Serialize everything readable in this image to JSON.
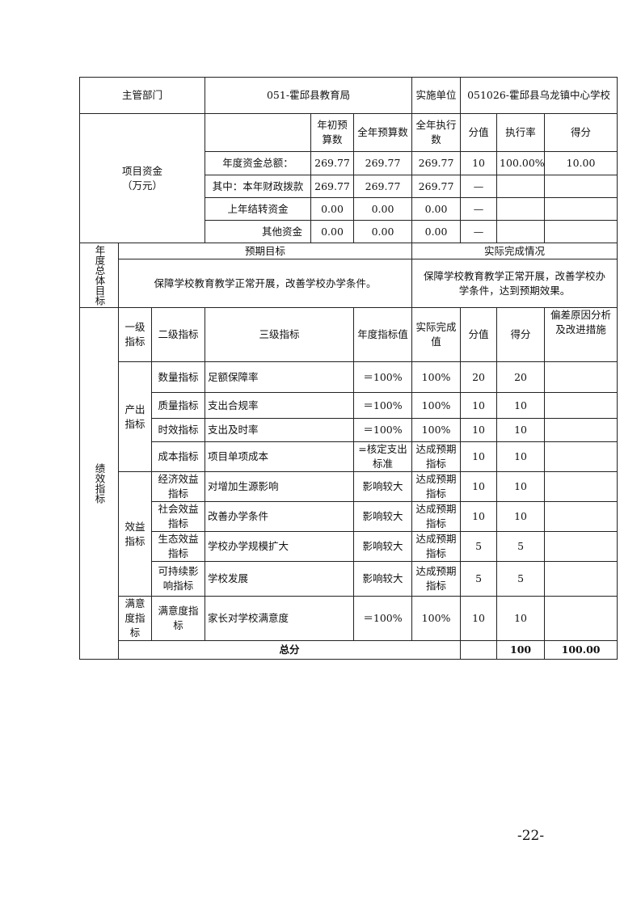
{
  "header": {
    "dept_label": "主管部门",
    "dept_value": "051-霍邱县教育局",
    "unit_label": "实施单位",
    "unit_value": "051026-霍邱县乌龙镇中心学校"
  },
  "funds": {
    "label": "项目资金（万元）",
    "columns": [
      "年初预算数",
      "全年预算数",
      "全年执行数",
      "分值",
      "执行率",
      "得分"
    ],
    "rows": [
      {
        "name": "年度资金总额：",
        "initial": "269.77",
        "annual": "269.77",
        "executed": "269.77",
        "score_value": "10",
        "rate": "100.00%",
        "score": "10.00"
      },
      {
        "name": "其中：本年财政拨款",
        "initial": "269.77",
        "annual": "269.77",
        "executed": "269.77",
        "score_value": "—",
        "rate": "",
        "score": ""
      },
      {
        "name": "上年结转资金",
        "initial": "0.00",
        "annual": "0.00",
        "executed": "0.00",
        "score_value": "—",
        "rate": "",
        "score": ""
      },
      {
        "name": "其他资金",
        "initial": "0.00",
        "annual": "0.00",
        "executed": "0.00",
        "score_value": "—",
        "rate": "",
        "score": ""
      }
    ]
  },
  "goals": {
    "label": "年度总体目标",
    "expected_label": "预期目标",
    "actual_label": "实际完成情况",
    "expected": "保障学校教育教学正常开展，改善学校办学条件。",
    "actual": "保障学校教育教学正常开展，改善学校办学条件，达到预期效果。"
  },
  "performance": {
    "label": "绩效指标",
    "columns": [
      "一级指标",
      "二级指标",
      "三级指标",
      "年度指标值",
      "实际完成值",
      "分值",
      "得分",
      "偏差原因分析及改进措施"
    ],
    "groups": [
      "产出指标",
      "效益指标",
      "满意度指标"
    ],
    "rows": [
      {
        "l2": "数量指标",
        "l3": "足额保障率",
        "target": "＝100%",
        "actual": "100%",
        "value": "20",
        "score": "20"
      },
      {
        "l2": "质量指标",
        "l3": "支出合规率",
        "target": "＝100%",
        "actual": "100%",
        "value": "10",
        "score": "10"
      },
      {
        "l2": "时效指标",
        "l3": "支出及时率",
        "target": "＝100%",
        "actual": "100%",
        "value": "10",
        "score": "10"
      },
      {
        "l2": "成本指标",
        "l3": "项目单项成本",
        "target": "=核定支出标准",
        "actual": "达成预期指标",
        "value": "10",
        "score": "10"
      },
      {
        "l2": "经济效益指标",
        "l3": "对增加生源影响",
        "target": "影响较大",
        "actual": "达成预期指标",
        "value": "10",
        "score": "10"
      },
      {
        "l2": "社会效益指标",
        "l3": "改善办学条件",
        "target": "影响较大",
        "actual": "达成预期指标",
        "value": "10",
        "score": "10"
      },
      {
        "l2": "生态效益指标",
        "l3": "学校办学规模扩大",
        "target": "影响较大",
        "actual": "达成预期指标",
        "value": "5",
        "score": "5"
      },
      {
        "l2": "可持续影响指标",
        "l3": "学校发展",
        "target": "影响较大",
        "actual": "达成预期指标",
        "value": "5",
        "score": "5"
      },
      {
        "l2": "满意度指标",
        "l3": "家长对学校满意度",
        "target": "＝100%",
        "actual": "100%",
        "value": "10",
        "score": "10"
      }
    ],
    "total_label": "总分",
    "total_value": "100",
    "total_score": "100.00"
  },
  "page_number": "-22-"
}
